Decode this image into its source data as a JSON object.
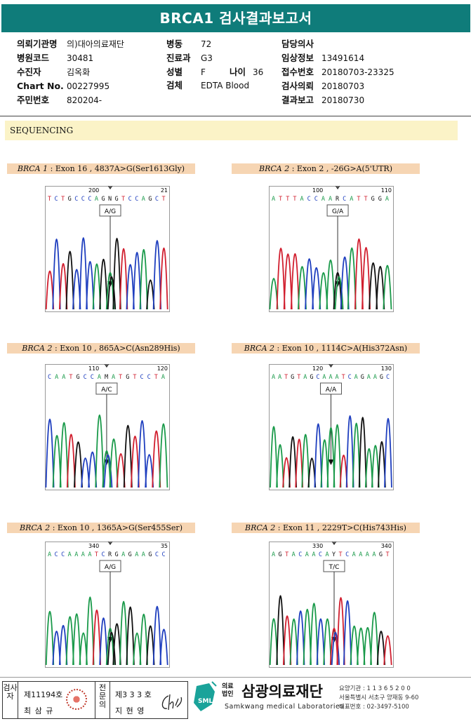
{
  "title": "BRCA1 검사결과보고서",
  "patient": {
    "col1": [
      {
        "label": "의뢰기관명",
        "value": "의)대아의료재단"
      },
      {
        "label": "병원코드",
        "value": "30481"
      },
      {
        "label": "수진자",
        "value": "김옥화"
      },
      {
        "label": "Chart No.",
        "value": "00227995"
      },
      {
        "label": "주민번호",
        "value": "820204-"
      }
    ],
    "col2": [
      {
        "label": "병동",
        "value": "72"
      },
      {
        "label": "진료과",
        "value": "G3"
      },
      {
        "label": "성별",
        "value": "F"
      },
      {
        "label": "검체",
        "value": "EDTA Blood"
      }
    ],
    "age_label": "나이",
    "age_value": "36",
    "col3": [
      {
        "label": "담당의사",
        "value": ""
      },
      {
        "label": "임상정보",
        "value": "13491614"
      },
      {
        "label": "접수번호",
        "value": "20180703-23325"
      },
      {
        "label": "검사의뢰",
        "value": "20180703"
      },
      {
        "label": "결과보고",
        "value": "20180730"
      }
    ]
  },
  "section_title": "SEQUENCING",
  "panels": [
    {
      "gene": "BRCA 1",
      "desc": " : Exon 16 , 4837A>G(Ser1613Gly)",
      "seq": "TCTGCCCAGNGTCCAGCT",
      "pos_left": "200",
      "pos_right": "21",
      "call": "A/G"
    },
    {
      "gene": "BRCA 2",
      "desc": " : Exon 2 , -26G>A(5'UTR)",
      "seq": "ATTTACCAARCATTGGA",
      "pos_left": "100",
      "pos_right": "110",
      "call": "G/A"
    },
    {
      "gene": "BRCA 2",
      "desc": " : Exon 10 , 865A>C(Asn289His)",
      "seq": "CAATGCCAMATGTCCTA",
      "pos_left": "110",
      "pos_right": "120",
      "call": "A/C"
    },
    {
      "gene": "BRCA 2",
      "desc": " : Exon 10 , 1114C>A(His372Asn)",
      "seq": "AATGTAGCAAATCAGAAGC",
      "pos_left": "120",
      "pos_right": "130",
      "call": "A/A"
    },
    {
      "gene": "BRCA 2",
      "desc": " : Exon 10 , 1365A>G(Ser455Ser)",
      "seq": "ACCAAAATCRGAGAAGCC",
      "pos_left": "340",
      "pos_right": "35",
      "call": "A/G"
    },
    {
      "gene": "BRCA 2",
      "desc": " : Exon 11 , 2229T>C(His743His)",
      "seq": "AGTACAACAYTCAAAAGT",
      "pos_left": "330",
      "pos_right": "340",
      "call": "T/C"
    }
  ],
  "colors": {
    "A": "#1a9a4a",
    "C": "#1f3fbf",
    "G": "#111111",
    "T": "#d11f2f",
    "N": "#111111"
  },
  "footer": {
    "role1": "검사자",
    "role1_no": "제11194호",
    "role1_name": "최 삼 규",
    "role2": "전문의",
    "role2_no": "제3 3 3 호",
    "role2_name": "지 현 영",
    "logo_text": "SML",
    "org_prefix_top": "의료",
    "org_prefix_bottom": "법인",
    "org_name": "삼광의료재단",
    "org_en": "Samkwang medical Laboratories",
    "addr1": "요양기관 : 1 1 3 6 5 2 0 0",
    "addr2": "서울특별시 서초구 양재동 9-60",
    "addr3": "대표번호 : 02-3497-5100"
  }
}
